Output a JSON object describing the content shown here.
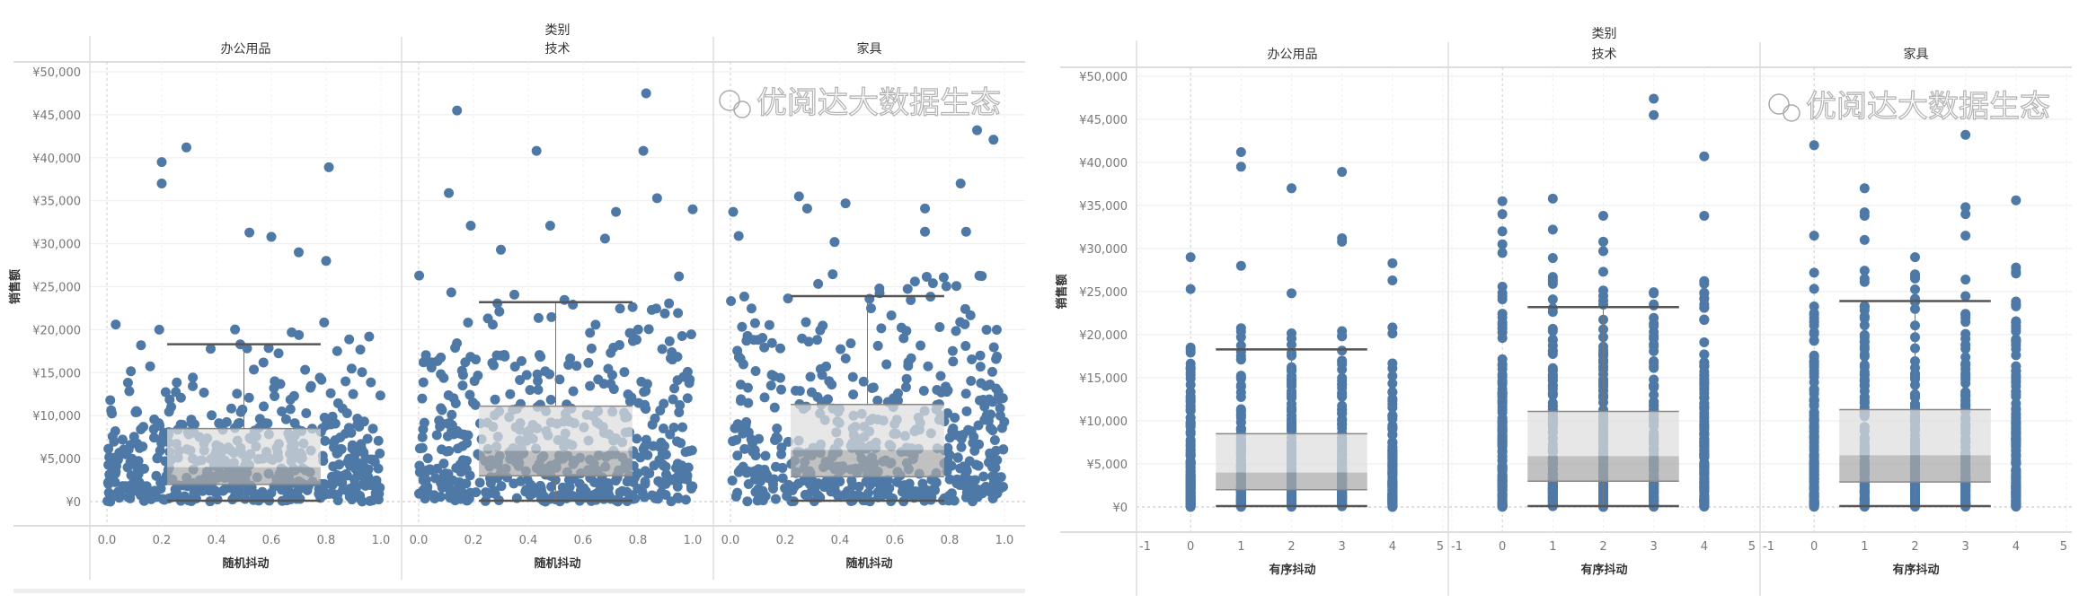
{
  "watermark": "优阅达大数据生态",
  "chart_data": [
    {
      "type": "scatter",
      "overlay": "box-plot",
      "facet_header": "类别",
      "facets": [
        "办公用品",
        "技术",
        "家具"
      ],
      "xlabel": "随机抖动",
      "ylabel": "销售额",
      "xlim": [
        0,
        1
      ],
      "xticks": [
        "0.0",
        "0.2",
        "0.4",
        "0.6",
        "0.8",
        "1.0"
      ],
      "xtick_values": [
        0,
        0.2,
        0.4,
        0.6,
        0.8,
        1.0
      ],
      "ylim": [
        0,
        50000
      ],
      "yticks": [
        "¥0",
        "¥5,000",
        "¥10,000",
        "¥15,000",
        "¥20,000",
        "¥25,000",
        "¥30,000",
        "¥35,000",
        "¥40,000",
        "¥45,000",
        "¥50,000"
      ],
      "grid": true,
      "color": "#4e79a7",
      "box_plots": [
        {
          "category": "办公用品",
          "lower_whisker": 100,
          "q1": 2000,
          "median": 4000,
          "q3": 8500,
          "upper_whisker": 18300
        },
        {
          "category": "技术",
          "lower_whisker": 100,
          "q1": 3000,
          "median": 5900,
          "q3": 11100,
          "upper_whisker": 23200
        },
        {
          "category": "家具",
          "lower_whisker": 100,
          "q1": 2900,
          "median": 6000,
          "q3": 11300,
          "upper_whisker": 23900
        }
      ],
      "high_points": [
        {
          "category": "办公用品",
          "points": [
            [
              0.2,
              39500
            ],
            [
              0.2,
              37000
            ],
            [
              0.29,
              41200
            ],
            [
              0.81,
              38900
            ],
            [
              0.52,
              31300
            ],
            [
              0.6,
              30800
            ],
            [
              0.7,
              29000
            ],
            [
              0.8,
              28000
            ]
          ]
        },
        {
          "category": "技术",
          "points": [
            [
              0.14,
              45500
            ],
            [
              0.83,
              47500
            ],
            [
              0.43,
              40800
            ],
            [
              0.82,
              40800
            ],
            [
              0.11,
              35900
            ],
            [
              0.87,
              35300
            ],
            [
              1.0,
              34000
            ],
            [
              0.19,
              32100
            ],
            [
              0.48,
              32100
            ],
            [
              0.3,
              29300
            ],
            [
              0.72,
              33700
            ],
            [
              0.68,
              30600
            ]
          ]
        },
        {
          "category": "家具",
          "points": [
            [
              0.9,
              43200
            ],
            [
              0.96,
              42100
            ],
            [
              0.84,
              37000
            ],
            [
              0.01,
              33700
            ],
            [
              0.25,
              35500
            ],
            [
              0.42,
              34700
            ],
            [
              0.71,
              34100
            ],
            [
              0.28,
              34100
            ],
            [
              0.71,
              31400
            ],
            [
              0.86,
              31400
            ],
            [
              0.03,
              30900
            ],
            [
              0.38,
              30200
            ]
          ]
        }
      ]
    },
    {
      "type": "scatter",
      "overlay": "box-plot",
      "facet_header": "类别",
      "facets": [
        "办公用品",
        "技术",
        "家具"
      ],
      "xlabel": "有序抖动",
      "ylabel": "销售额",
      "xlim": [
        -1,
        5
      ],
      "xticks": [
        "-1",
        "0",
        "1",
        "2",
        "3",
        "4",
        "5"
      ],
      "xtick_values": [
        -1,
        0,
        1,
        2,
        3,
        4,
        5
      ],
      "ylim": [
        0,
        50000
      ],
      "yticks": [
        "¥0",
        "¥5,000",
        "¥10,000",
        "¥15,000",
        "¥20,000",
        "¥25,000",
        "¥30,000",
        "¥35,000",
        "¥40,000",
        "¥45,000",
        "¥50,000"
      ],
      "grid": true,
      "color": "#4e79a7",
      "box_plots": [
        {
          "category": "办公用品",
          "lower_whisker": 100,
          "q1": 2000,
          "median": 4000,
          "q3": 8500,
          "upper_whisker": 18300
        },
        {
          "category": "技术",
          "lower_whisker": 100,
          "q1": 3000,
          "median": 5900,
          "q3": 11100,
          "upper_whisker": 23200
        },
        {
          "category": "家具",
          "lower_whisker": 100,
          "q1": 2900,
          "median": 6000,
          "q3": 11300,
          "upper_whisker": 23900
        }
      ],
      "high_points": [
        {
          "category": "办公用品",
          "points": [
            [
              0,
              29000
            ],
            [
              0,
              25300
            ],
            [
              1,
              41200
            ],
            [
              1,
              39500
            ],
            [
              1,
              28000
            ],
            [
              2,
              37000
            ],
            [
              2,
              24800
            ],
            [
              3,
              38900
            ],
            [
              3,
              31200
            ],
            [
              3,
              30800
            ],
            [
              4,
              28300
            ],
            [
              4,
              26300
            ]
          ]
        },
        {
          "category": "技术",
          "points": [
            [
              0,
              35500
            ],
            [
              0,
              34000
            ],
            [
              0,
              32000
            ],
            [
              0,
              30500
            ],
            [
              0,
              29500
            ],
            [
              1,
              35800
            ],
            [
              1,
              32200
            ],
            [
              1,
              28900
            ],
            [
              1,
              26700
            ],
            [
              2,
              33800
            ],
            [
              2,
              30800
            ],
            [
              2,
              29700
            ],
            [
              2,
              27300
            ],
            [
              3,
              47400
            ],
            [
              3,
              45500
            ],
            [
              3,
              24800
            ],
            [
              3,
              21000
            ],
            [
              4,
              40700
            ],
            [
              4,
              33800
            ],
            [
              4,
              24800
            ]
          ]
        },
        {
          "category": "家具",
          "points": [
            [
              0,
              42000
            ],
            [
              0,
              31500
            ],
            [
              0,
              27200
            ],
            [
              1,
              37000
            ],
            [
              1,
              34200
            ],
            [
              1,
              33800
            ],
            [
              1,
              31000
            ],
            [
              2,
              29000
            ],
            [
              2,
              27000
            ],
            [
              3,
              43200
            ],
            [
              3,
              34800
            ],
            [
              3,
              34000
            ],
            [
              3,
              31500
            ],
            [
              3,
              26400
            ],
            [
              4,
              35600
            ],
            [
              4,
              27800
            ],
            [
              4,
              27300
            ]
          ]
        }
      ]
    }
  ]
}
